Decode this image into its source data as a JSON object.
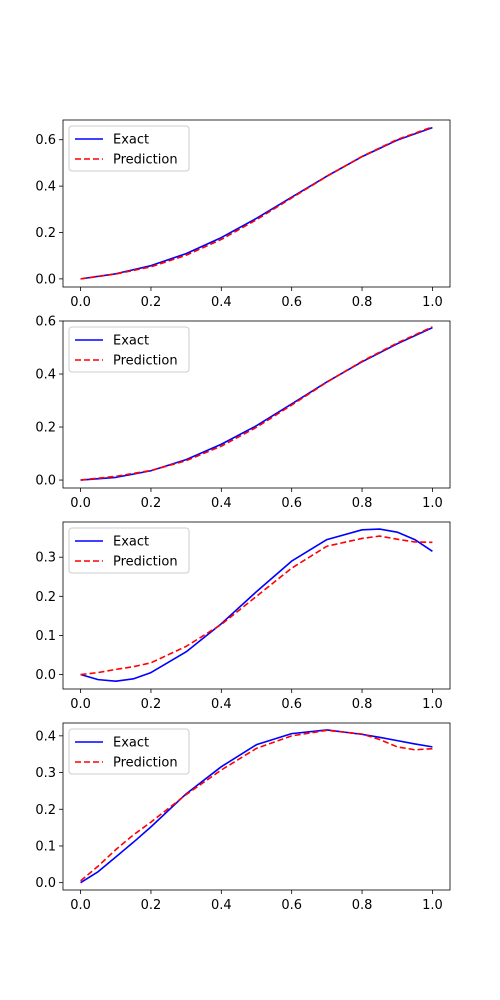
{
  "colors": {
    "exact": "#0000ff",
    "prediction": "#ff0000"
  },
  "chart_data": [
    {
      "type": "line",
      "legend_position": "upper-left",
      "xlim": [
        -0.05,
        1.05
      ],
      "ylim": [
        -0.035,
        0.685
      ],
      "x_ticks": [
        "0.0",
        "0.2",
        "0.4",
        "0.6",
        "0.8",
        "1.0"
      ],
      "y_ticks": [
        "0.0",
        "0.2",
        "0.4",
        "0.6"
      ],
      "x": [
        0.0,
        0.1,
        0.2,
        0.3,
        0.4,
        0.5,
        0.6,
        0.7,
        0.8,
        0.9,
        1.0
      ],
      "series": [
        {
          "name": "Exact",
          "style": "solid",
          "values": [
            0.0,
            0.022,
            0.057,
            0.109,
            0.178,
            0.261,
            0.352,
            0.443,
            0.527,
            0.598,
            0.652
          ]
        },
        {
          "name": "Prediction",
          "style": "dashed",
          "values": [
            0.0,
            0.021,
            0.052,
            0.102,
            0.17,
            0.255,
            0.349,
            0.442,
            0.528,
            0.601,
            0.655
          ]
        }
      ]
    },
    {
      "type": "line",
      "legend_position": "upper-left",
      "xlim": [
        -0.05,
        1.05
      ],
      "ylim": [
        -0.03,
        0.6
      ],
      "x_ticks": [
        "0.0",
        "0.2",
        "0.4",
        "0.6",
        "0.8",
        "1.0"
      ],
      "y_ticks": [
        "0.0",
        "0.2",
        "0.4",
        "0.6"
      ],
      "x": [
        0.0,
        0.1,
        0.2,
        0.3,
        0.4,
        0.5,
        0.6,
        0.7,
        0.8,
        0.9,
        1.0
      ],
      "series": [
        {
          "name": "Exact",
          "style": "solid",
          "values": [
            0.0,
            0.01,
            0.035,
            0.077,
            0.135,
            0.205,
            0.287,
            0.37,
            0.446,
            0.514,
            0.575
          ]
        },
        {
          "name": "Prediction",
          "style": "dashed",
          "values": [
            0.0,
            0.014,
            0.036,
            0.073,
            0.128,
            0.199,
            0.283,
            0.369,
            0.448,
            0.517,
            0.578
          ]
        }
      ]
    },
    {
      "type": "line",
      "legend_position": "upper-left",
      "xlim": [
        -0.05,
        1.05
      ],
      "ylim": [
        -0.037,
        0.39
      ],
      "x_ticks": [
        "0.0",
        "0.2",
        "0.4",
        "0.6",
        "0.8",
        "1.0"
      ],
      "y_ticks": [
        "0.0",
        "0.1",
        "0.2",
        "0.3"
      ],
      "x": [
        0.0,
        0.05,
        0.1,
        0.15,
        0.2,
        0.3,
        0.4,
        0.5,
        0.6,
        0.7,
        0.8,
        0.85,
        0.9,
        0.95,
        1.0
      ],
      "series": [
        {
          "name": "Exact",
          "style": "solid",
          "values": [
            0.0,
            -0.013,
            -0.017,
            -0.011,
            0.005,
            0.058,
            0.13,
            0.212,
            0.29,
            0.345,
            0.37,
            0.372,
            0.364,
            0.345,
            0.315
          ]
        },
        {
          "name": "Prediction",
          "style": "dashed",
          "values": [
            0.0,
            0.005,
            0.013,
            0.02,
            0.03,
            0.072,
            0.128,
            0.2,
            0.272,
            0.328,
            0.348,
            0.354,
            0.346,
            0.339,
            0.338
          ]
        }
      ]
    },
    {
      "type": "line",
      "legend_position": "upper-left",
      "xlim": [
        -0.05,
        1.05
      ],
      "ylim": [
        -0.02,
        0.435
      ],
      "x_ticks": [
        "0.0",
        "0.2",
        "0.4",
        "0.6",
        "0.8",
        "1.0"
      ],
      "y_ticks": [
        "0.0",
        "0.1",
        "0.2",
        "0.3",
        "0.4"
      ],
      "x": [
        0.0,
        0.05,
        0.1,
        0.15,
        0.2,
        0.3,
        0.4,
        0.5,
        0.6,
        0.7,
        0.8,
        0.85,
        0.9,
        0.95,
        1.0
      ],
      "series": [
        {
          "name": "Exact",
          "style": "solid",
          "values": [
            0.0,
            0.03,
            0.07,
            0.11,
            0.152,
            0.242,
            0.316,
            0.376,
            0.406,
            0.416,
            0.404,
            0.396,
            0.387,
            0.378,
            0.37
          ]
        },
        {
          "name": "Prediction",
          "style": "dashed",
          "values": [
            0.005,
            0.045,
            0.09,
            0.13,
            0.165,
            0.24,
            0.307,
            0.366,
            0.4,
            0.415,
            0.405,
            0.39,
            0.37,
            0.362,
            0.365
          ]
        }
      ]
    }
  ]
}
